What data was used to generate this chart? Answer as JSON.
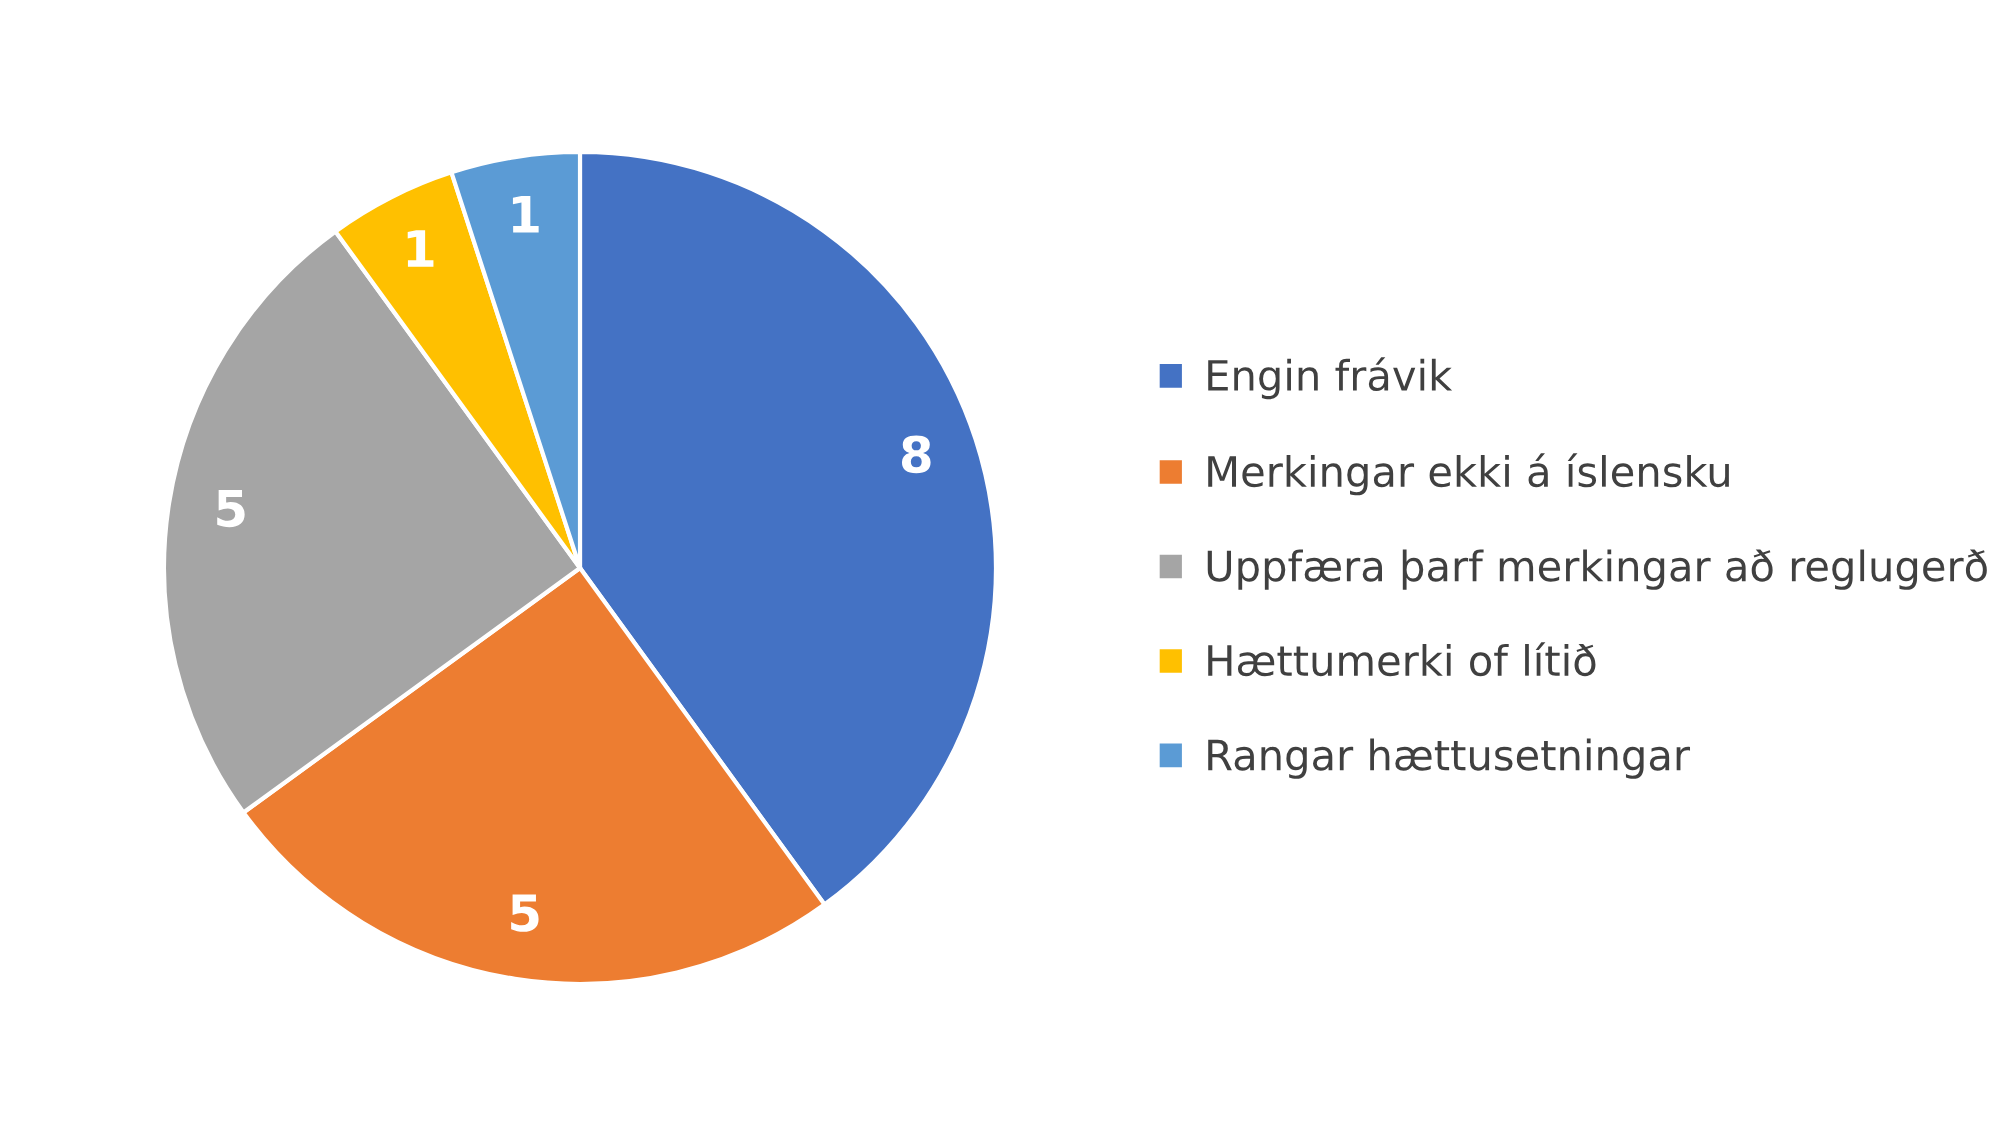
{
  "chart_data": {
    "type": "pie",
    "categories": [
      "Engin frávik",
      "Merkingar ekki á íslensku",
      "Uppfæra þarf merkingar að reglugerð",
      "Hættumerki of lítið",
      "Rangar hættusetningar"
    ],
    "values": [
      8,
      5,
      5,
      1,
      1
    ],
    "colors": [
      "#4472c4",
      "#ed7d31",
      "#a5a5a5",
      "#ffc000",
      "#5b9bd5"
    ],
    "data_labels": true,
    "legend": "right"
  }
}
